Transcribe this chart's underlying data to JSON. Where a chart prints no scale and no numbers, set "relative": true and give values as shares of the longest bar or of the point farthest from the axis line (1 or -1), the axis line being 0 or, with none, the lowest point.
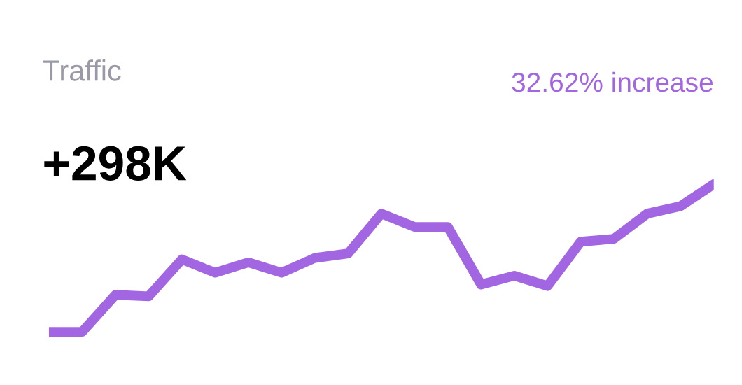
{
  "chart_data": {
    "type": "line",
    "title": "Traffic",
    "subtitle": "+298K",
    "annotations": [
      "32.62% increase"
    ],
    "relative": true,
    "categories": [
      null,
      null,
      null,
      null,
      null,
      null,
      null,
      null,
      null,
      null,
      null,
      null,
      null,
      null,
      null,
      null,
      null,
      null,
      null,
      null,
      null
    ],
    "series": [
      {
        "color": "#a366e3",
        "values": [
          0,
          0,
          0.25,
          0.24,
          0.49,
          0.4,
          0.47,
          0.4,
          0.5,
          0.53,
          0.8,
          0.71,
          0.71,
          0.32,
          0.38,
          0.31,
          0.61,
          0.63,
          0.8,
          0.85,
          1
        ]
      }
    ],
    "grid": false,
    "legend": false
  }
}
